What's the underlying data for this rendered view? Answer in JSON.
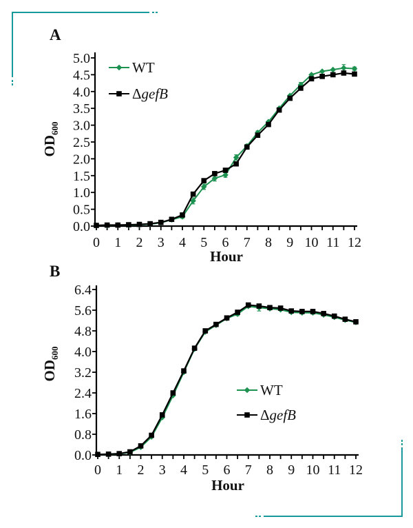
{
  "figure": {
    "accent_teal": "#17999b",
    "background": "#ffffff",
    "text_color": "#111111"
  },
  "chart_data": [
    {
      "type": "line",
      "panel_label": "A",
      "xlabel": "Hour",
      "ylabel": "OD",
      "ylabel_subscript": "600",
      "xlim": [
        0,
        12
      ],
      "ylim": [
        0,
        5.0
      ],
      "xticks": [
        0,
        1,
        2,
        3,
        4,
        5,
        6,
        7,
        8,
        9,
        10,
        11,
        12
      ],
      "yticks": [
        5.0,
        4.5,
        4.0,
        3.5,
        3.0,
        2.5,
        2.0,
        1.5,
        1.0,
        0.5,
        0.0
      ],
      "minor_xtick_step": 0.5,
      "grid": false,
      "legend_position": "upper-left-inside",
      "x": [
        0,
        0.5,
        1,
        1.5,
        2,
        2.5,
        3,
        3.5,
        4,
        4.5,
        5,
        5.5,
        6,
        6.5,
        7,
        7.5,
        8,
        8.5,
        9,
        9.5,
        10,
        10.5,
        11,
        11.5,
        12
      ],
      "series": [
        {
          "name": "WT",
          "name_parts": [
            {
              "text": "WT",
              "italic": false
            }
          ],
          "color": "#1d9150",
          "marker": "diamond",
          "values": [
            0.02,
            0.02,
            0.03,
            0.03,
            0.04,
            0.06,
            0.1,
            0.19,
            0.28,
            0.75,
            1.17,
            1.42,
            1.52,
            2.04,
            2.38,
            2.78,
            3.1,
            3.5,
            3.88,
            4.2,
            4.5,
            4.6,
            4.65,
            4.7,
            4.68
          ],
          "yerr": [
            0,
            0,
            0,
            0,
            0,
            0,
            0,
            0,
            0.05,
            0.09,
            0.08,
            0.08,
            0.07,
            0.08,
            0.05,
            0.05,
            0,
            0,
            0,
            0.07,
            0,
            0,
            0,
            0.1,
            0.05
          ]
        },
        {
          "name": "ΔgefB",
          "name_parts": [
            {
              "text": "Δ",
              "italic": false
            },
            {
              "text": "gefB",
              "italic": true
            }
          ],
          "color": "#000000",
          "marker": "square",
          "values": [
            0.02,
            0.03,
            0.03,
            0.04,
            0.05,
            0.07,
            0.11,
            0.2,
            0.33,
            0.95,
            1.35,
            1.56,
            1.66,
            1.85,
            2.35,
            2.7,
            3.02,
            3.45,
            3.8,
            4.1,
            4.38,
            4.45,
            4.5,
            4.55,
            4.52
          ],
          "yerr": null
        }
      ]
    },
    {
      "type": "line",
      "panel_label": "B",
      "xlabel": "Hour",
      "ylabel": "OD",
      "ylabel_subscript": "600",
      "xlim": [
        0,
        12
      ],
      "ylim": [
        0,
        6.4
      ],
      "xticks": [
        0,
        1,
        2,
        3,
        4,
        5,
        6,
        7,
        8,
        9,
        10,
        11,
        12
      ],
      "yticks": [
        6.4,
        5.6,
        4.8,
        4.0,
        3.2,
        2.4,
        1.6,
        0.8,
        0.0
      ],
      "minor_xtick_step": 0.5,
      "grid": false,
      "legend_position": "center-right-inside",
      "x": [
        0,
        0.5,
        1,
        1.5,
        2,
        2.5,
        3,
        3.5,
        4,
        4.5,
        5,
        5.5,
        6,
        6.5,
        7,
        7.5,
        8,
        8.5,
        9,
        9.5,
        10,
        10.5,
        11,
        11.5,
        12
      ],
      "series": [
        {
          "name": "WT",
          "name_parts": [
            {
              "text": "WT",
              "italic": false
            }
          ],
          "color": "#1d9150",
          "marker": "diamond",
          "values": [
            0.02,
            0.02,
            0.04,
            0.1,
            0.3,
            0.7,
            1.45,
            2.3,
            3.2,
            4.1,
            4.76,
            5.02,
            5.28,
            5.45,
            5.75,
            5.7,
            5.66,
            5.62,
            5.52,
            5.5,
            5.5,
            5.42,
            5.33,
            5.22,
            5.13
          ],
          "yerr": [
            0,
            0,
            0,
            0,
            0,
            0,
            0,
            0,
            0,
            0,
            0,
            0,
            0,
            0.06,
            0,
            0.13,
            0,
            0,
            0,
            0,
            0.05,
            0,
            0.05,
            0,
            0.04
          ]
        },
        {
          "name": "ΔgefB",
          "name_parts": [
            {
              "text": "Δ",
              "italic": false
            },
            {
              "text": "gefB",
              "italic": true
            }
          ],
          "color": "#000000",
          "marker": "square",
          "values": [
            0.02,
            0.03,
            0.05,
            0.12,
            0.35,
            0.76,
            1.55,
            2.4,
            3.25,
            4.13,
            4.8,
            5.05,
            5.3,
            5.52,
            5.8,
            5.76,
            5.7,
            5.68,
            5.57,
            5.55,
            5.55,
            5.47,
            5.37,
            5.25,
            5.15
          ],
          "yerr": null
        }
      ]
    }
  ]
}
